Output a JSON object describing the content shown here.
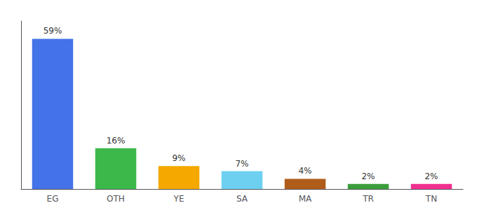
{
  "chart_data": {
    "type": "bar",
    "categories": [
      "EG",
      "OTH",
      "YE",
      "SA",
      "MA",
      "TR",
      "TN"
    ],
    "values": [
      59,
      16,
      9,
      7,
      4,
      2,
      2
    ],
    "value_labels": [
      "59%",
      "16%",
      "9%",
      "7%",
      "4%",
      "2%",
      "2%"
    ],
    "colors": [
      "#4472e8",
      "#3cb84a",
      "#f5a800",
      "#6dd0f0",
      "#b05c1a",
      "#3a9e3a",
      "#f03090"
    ],
    "data_labels": true,
    "ylim": [
      0,
      66
    ],
    "yticks": [],
    "grid": false,
    "tick_labels": "x"
  }
}
